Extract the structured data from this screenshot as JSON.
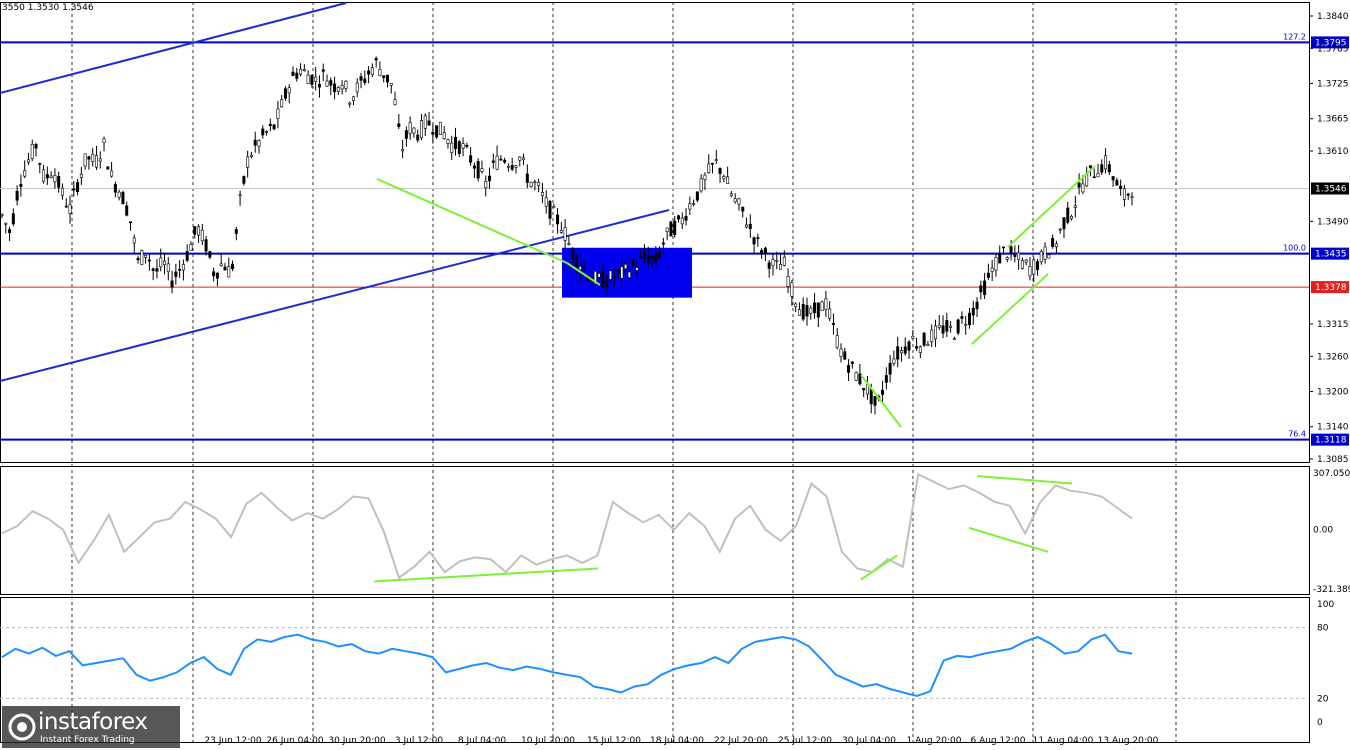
{
  "ohlc_readout": "3550 1.3530 1.3546",
  "brand": {
    "name": "instaforex",
    "tagline": "Instant Forex Trading"
  },
  "colors": {
    "candle": "#000000",
    "level_line": "#0000cc",
    "trend_line": "#1a2fcc",
    "red_level": "#e0201f",
    "divergence": "#7df03a",
    "cci_line": "#c0c0c0",
    "rsi_line": "#1e90ff",
    "zone": "#0000ee"
  },
  "chart_data": [
    {
      "type": "candlestick",
      "pane": "price",
      "ylim": [
        1.3085,
        1.384
      ],
      "y_ticks": [
        "1.3840",
        "1.3785",
        "1.3725",
        "1.3665",
        "1.3610",
        "1.3490",
        "1.3315",
        "1.3260",
        "1.3200",
        "1.3140",
        "1.3085"
      ],
      "x_ticks": [
        "23 Jun 12:00",
        "26 Jun 04:00",
        "30 Jun 20:00",
        "3 Jul 12:00",
        "8 Jul 04:00",
        "10 Jul 20:00",
        "15 Jul 12:00",
        "18 Jul 04:00",
        "22 Jul 20:00",
        "25 Jul 12:00",
        "30 Jul 04:00",
        "1 Aug 20:00",
        "6 Aug 12:00",
        "11 Aug 04:00",
        "13 Aug 20:00"
      ],
      "current_price": "1.3546",
      "current_price_value": 1.3546,
      "levels": [
        {
          "fib": "127.2",
          "price": "1.3795",
          "value": 1.3795
        },
        {
          "fib": "100.0",
          "price": "1.3435",
          "value": 1.3435
        },
        {
          "fib": "76.4",
          "price": "1.3118",
          "value": 1.3118
        }
      ],
      "red_level": {
        "price": "1.3378",
        "value": 1.3378
      },
      "series": {
        "close_path": [
          1.35,
          1.347,
          1.3555,
          1.359,
          1.362,
          1.356,
          1.358,
          1.354,
          1.351,
          1.356,
          1.36,
          1.359,
          1.362,
          1.356,
          1.354,
          1.35,
          1.342,
          1.344,
          1.34,
          1.342,
          1.339,
          1.341,
          1.344,
          1.348,
          1.345,
          1.34,
          1.342,
          1.34,
          1.352,
          1.36,
          1.362,
          1.364,
          1.365,
          1.369,
          1.373,
          1.375,
          1.374,
          1.373,
          1.374,
          1.372,
          1.373,
          1.37,
          1.372,
          1.374,
          1.376,
          1.374,
          1.372,
          1.361,
          1.365,
          1.364,
          1.366,
          1.365,
          1.364,
          1.362,
          1.362,
          1.36,
          1.358,
          1.355,
          1.359,
          1.36,
          1.359,
          1.36,
          1.356,
          1.355,
          1.352,
          1.35,
          1.348,
          1.344,
          1.342,
          1.34,
          1.339,
          1.339,
          1.3395,
          1.34,
          1.341,
          1.342,
          1.343,
          1.342,
          1.346,
          1.348,
          1.349,
          1.352,
          1.354,
          1.357,
          1.359,
          1.357,
          1.353,
          1.351,
          1.348,
          1.345,
          1.343,
          1.341,
          1.342,
          1.337,
          1.334,
          1.333,
          1.334,
          1.335,
          1.33,
          1.326,
          1.324,
          1.322,
          1.32,
          1.317,
          1.322,
          1.326,
          1.327,
          1.329,
          1.328,
          1.329,
          1.33,
          1.331,
          1.33,
          1.332,
          1.333,
          1.336,
          1.339,
          1.342,
          1.344,
          1.343,
          1.342,
          1.341,
          1.342,
          1.344,
          1.345,
          1.349,
          1.351,
          1.355,
          1.357,
          1.358,
          1.359,
          1.356,
          1.353,
          1.3546
        ]
      },
      "annotations": {
        "consolidation_box": {
          "price_top": 1.3445,
          "price_bottom": 1.336
        }
      }
    },
    {
      "type": "line",
      "pane": "cci",
      "ylim": [
        -321.3899,
        307.0503
      ],
      "y_ticks": [
        "307.0503",
        "0.00",
        "-321.3899"
      ],
      "series": [
        {
          "values": [
            -20,
            20,
            100,
            60,
            0,
            -180,
            -60,
            80,
            -120,
            -40,
            40,
            60,
            150,
            110,
            60,
            -40,
            140,
            200,
            120,
            50,
            90,
            60,
            110,
            180,
            170,
            -10,
            -260,
            -200,
            -120,
            -230,
            -170,
            -150,
            -160,
            -230,
            -140,
            -190,
            -160,
            -140,
            -180,
            -140,
            150,
            90,
            40,
            80,
            0,
            90,
            20,
            -120,
            60,
            130,
            0,
            -60,
            20,
            250,
            180,
            -120,
            -210,
            -230,
            -160,
            -200,
            300,
            260,
            220,
            240,
            200,
            150,
            130,
            -20,
            150,
            240,
            210,
            200,
            180,
            120,
            60
          ]
        }
      ],
      "divergence_lines": [
        {
          "from": -280,
          "to": -210
        },
        {
          "from": -270,
          "to": -140
        },
        {
          "from": 290,
          "to": 250
        },
        {
          "from": 10,
          "to": -120
        }
      ]
    },
    {
      "type": "line",
      "pane": "rsi",
      "ylim": [
        0,
        100
      ],
      "y_ticks": [
        "100",
        "80",
        "20",
        "0"
      ],
      "series": [
        {
          "values": [
            55,
            62,
            58,
            63,
            56,
            60,
            48,
            50,
            52,
            54,
            40,
            35,
            38,
            42,
            50,
            55,
            45,
            40,
            62,
            70,
            68,
            72,
            74,
            70,
            68,
            64,
            66,
            60,
            58,
            62,
            60,
            58,
            55,
            42,
            45,
            48,
            50,
            46,
            44,
            47,
            45,
            42,
            40,
            38,
            30,
            28,
            25,
            30,
            32,
            40,
            45,
            48,
            50,
            55,
            50,
            62,
            68,
            70,
            72,
            70,
            64,
            52,
            40,
            35,
            30,
            32,
            28,
            25,
            22,
            26,
            52,
            56,
            55,
            58,
            60,
            62,
            68,
            72,
            66,
            58,
            60,
            70,
            74,
            60,
            58
          ]
        }
      ]
    }
  ]
}
